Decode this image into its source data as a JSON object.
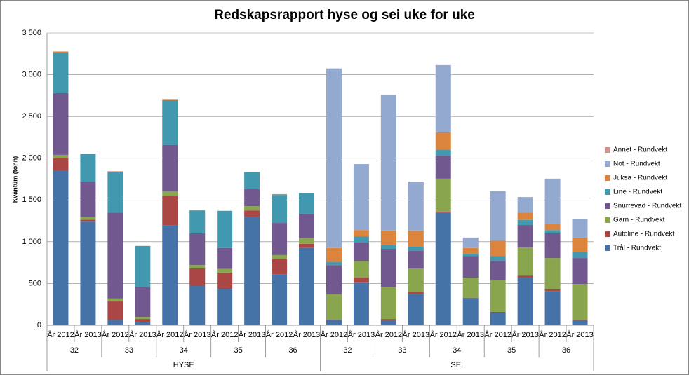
{
  "chart_data": {
    "type": "stacked_bar",
    "title": "Redskapsrapport hyse og sei uke for uke",
    "y_label": "Kvantum (tonn)",
    "categories": [
      "År 2012",
      "År 2013",
      "År 2012",
      "År 2013",
      "År 2012",
      "År 2013",
      "År 2012",
      "År 2013",
      "År 2012",
      "År 2013",
      "År 2012",
      "År 2013",
      "År 2012",
      "År 2013",
      "År 2012",
      "År 2013",
      "År 2012",
      "År 2013",
      "År 2012",
      "År 2013"
    ],
    "weeks": [
      "32",
      "33",
      "34",
      "35",
      "36",
      "32",
      "33",
      "34",
      "35",
      "36"
    ],
    "groups": [
      "HYSE",
      "SEI"
    ],
    "series": [
      {
        "name": "Trål - Rundvekt",
        "color": "#4572a7",
        "values": [
          1855,
          1240,
          65,
          35,
          1195,
          470,
          435,
          1300,
          610,
          925,
          65,
          510,
          60,
          375,
          1345,
          320,
          150,
          570,
          405,
          60
        ]
      },
      {
        "name": "Autoline - Rundvekt",
        "color": "#aa4643",
        "values": [
          150,
          25,
          220,
          40,
          350,
          210,
          195,
          75,
          180,
          50,
          5,
          60,
          15,
          25,
          15,
          10,
          10,
          25,
          25,
          5
        ]
      },
      {
        "name": "Garn - Rundvekt",
        "color": "#89a54e",
        "values": [
          35,
          30,
          35,
          25,
          60,
          40,
          45,
          50,
          50,
          65,
          300,
          200,
          385,
          280,
          395,
          240,
          380,
          335,
          375,
          430
        ]
      },
      {
        "name": "Snurrevad - Rundvekt",
        "color": "#71588f",
        "values": [
          740,
          420,
          1030,
          355,
          555,
          380,
          250,
          205,
          385,
          295,
          350,
          220,
          455,
          210,
          275,
          260,
          230,
          270,
          295,
          310
        ]
      },
      {
        "name": "Line - Rundvekt",
        "color": "#4198af",
        "values": [
          485,
          340,
          480,
          495,
          535,
          275,
          445,
          200,
          335,
          245,
          35,
          75,
          45,
          50,
          75,
          25,
          60,
          60,
          40,
          70
        ]
      },
      {
        "name": "Juksa - Rundvekt",
        "color": "#db843d",
        "values": [
          10,
          0,
          10,
          0,
          10,
          5,
          0,
          5,
          10,
          0,
          170,
          75,
          175,
          195,
          205,
          70,
          185,
          90,
          70,
          175
        ]
      },
      {
        "name": "Not - Rundvekt",
        "color": "#93a9cf",
        "values": [
          0,
          0,
          0,
          0,
          0,
          0,
          0,
          0,
          0,
          0,
          2150,
          790,
          1625,
          585,
          805,
          125,
          590,
          185,
          545,
          225
        ]
      },
      {
        "name": "Annet - Rundvekt",
        "color": "#d19392",
        "values": [
          5,
          0,
          5,
          0,
          5,
          0,
          0,
          0,
          0,
          0,
          0,
          0,
          0,
          0,
          0,
          0,
          0,
          0,
          0,
          0
        ]
      }
    ],
    "ylim": [
      0,
      3500
    ],
    "yticks": [
      0,
      500,
      {
        "value": 1000,
        "label": "1 000"
      },
      {
        "value": 1500,
        "label": "1 500"
      },
      {
        "value": 2000,
        "label": "2 000"
      },
      {
        "value": 2500,
        "label": "2 500"
      },
      {
        "value": 3000,
        "label": "3 000"
      },
      {
        "value": 3500,
        "label": "3 500"
      }
    ],
    "grid": true,
    "legend": "right"
  }
}
